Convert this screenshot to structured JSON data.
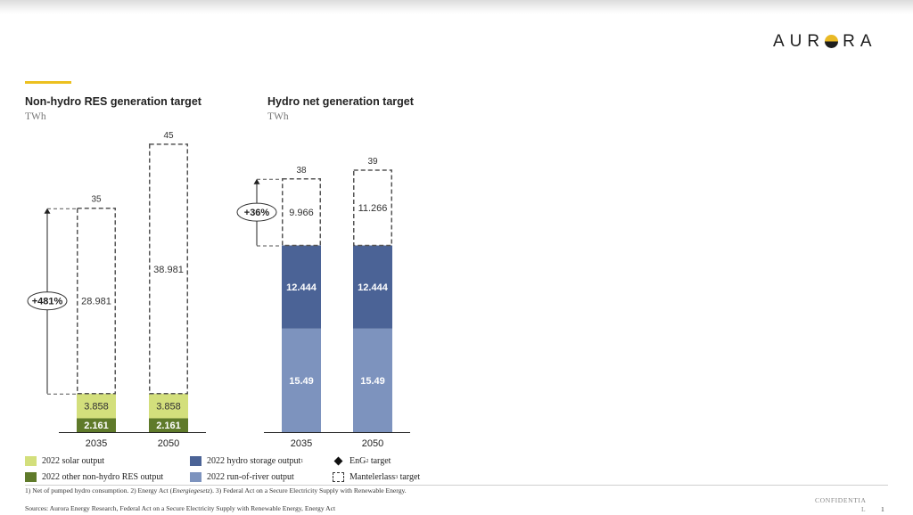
{
  "brand": {
    "name_left": "AUR",
    "name_right": "RA",
    "icon": "sun-horizon-logo-icon"
  },
  "colors": {
    "solar": "#d3df7c",
    "other": "#5f7a2a",
    "storage": "#4b6396",
    "ror": "#7d93be",
    "accent": "#ecc01f",
    "dashed": "#555555"
  },
  "chart_data": [
    {
      "type": "bar",
      "stacked": true,
      "title": "Non-hydro RES generation target",
      "unit": "TWh",
      "categories": [
        "2035",
        "2050"
      ],
      "series": [
        {
          "name": "2022 other non-hydro RES output",
          "values": [
            2.161,
            2.161
          ],
          "labels": [
            "2.161",
            "2.161"
          ],
          "color": "#5f7a2a"
        },
        {
          "name": "2022 solar output",
          "values": [
            3.858,
            3.858
          ],
          "labels": [
            "3.858",
            "3.858"
          ],
          "color": "#d3df7c"
        },
        {
          "name": "Mantelerlass target",
          "values": [
            28.981,
            38.981
          ],
          "labels": [
            "28.981",
            "38.981"
          ],
          "dashed": true
        }
      ],
      "totals": [
        "35",
        "45"
      ],
      "annotation": "+481%",
      "ylim": [
        0,
        45
      ]
    },
    {
      "type": "bar",
      "stacked": true,
      "title": "Hydro net generation target",
      "unit": "TWh",
      "categories": [
        "2035",
        "2050"
      ],
      "series": [
        {
          "name": "2022 run-of-river output",
          "values": [
            15.49,
            15.49
          ],
          "labels": [
            "15.49",
            "15.49"
          ],
          "color": "#7d93be"
        },
        {
          "name": "2022 hydro storage output",
          "values": [
            12.444,
            12.444
          ],
          "labels": [
            "12.444",
            "12.444"
          ],
          "color": "#4b6396"
        },
        {
          "name": "Mantelerlass target",
          "values": [
            9.966,
            11.266
          ],
          "labels": [
            "9.966",
            "11.266"
          ],
          "dashed": true
        }
      ],
      "totals": [
        "38",
        "39"
      ],
      "annotation": "+36%",
      "ylim": [
        0,
        39
      ]
    }
  ],
  "legend": {
    "solar": "2022 solar output",
    "other": "2022 other non-hydro RES output",
    "storage": "2022 hydro storage output",
    "storage_sup": "1",
    "ror": "2022 run-of-river output",
    "eng_pre": "EnG",
    "eng_sup": "2",
    "eng_post": " target",
    "mant_pre": "Mantelerlass",
    "mant_sup": "3",
    "mant_post": " target"
  },
  "footnotes": {
    "part1": "1) Net of pumped hydro consumption. 2) Energy Act (",
    "italic": "Energiegesetz",
    "part2": "). 3) Federal Act on a Secure Electricity Supply with Renewable Energy.",
    "sources": "Sources: Aurora Energy Research, Federal Act on a Secure Electricity Supply with Renewable Energy, Energy Act"
  },
  "confidential": {
    "line1": "CONFIDENTIA",
    "line2": "L",
    "page": "1"
  }
}
